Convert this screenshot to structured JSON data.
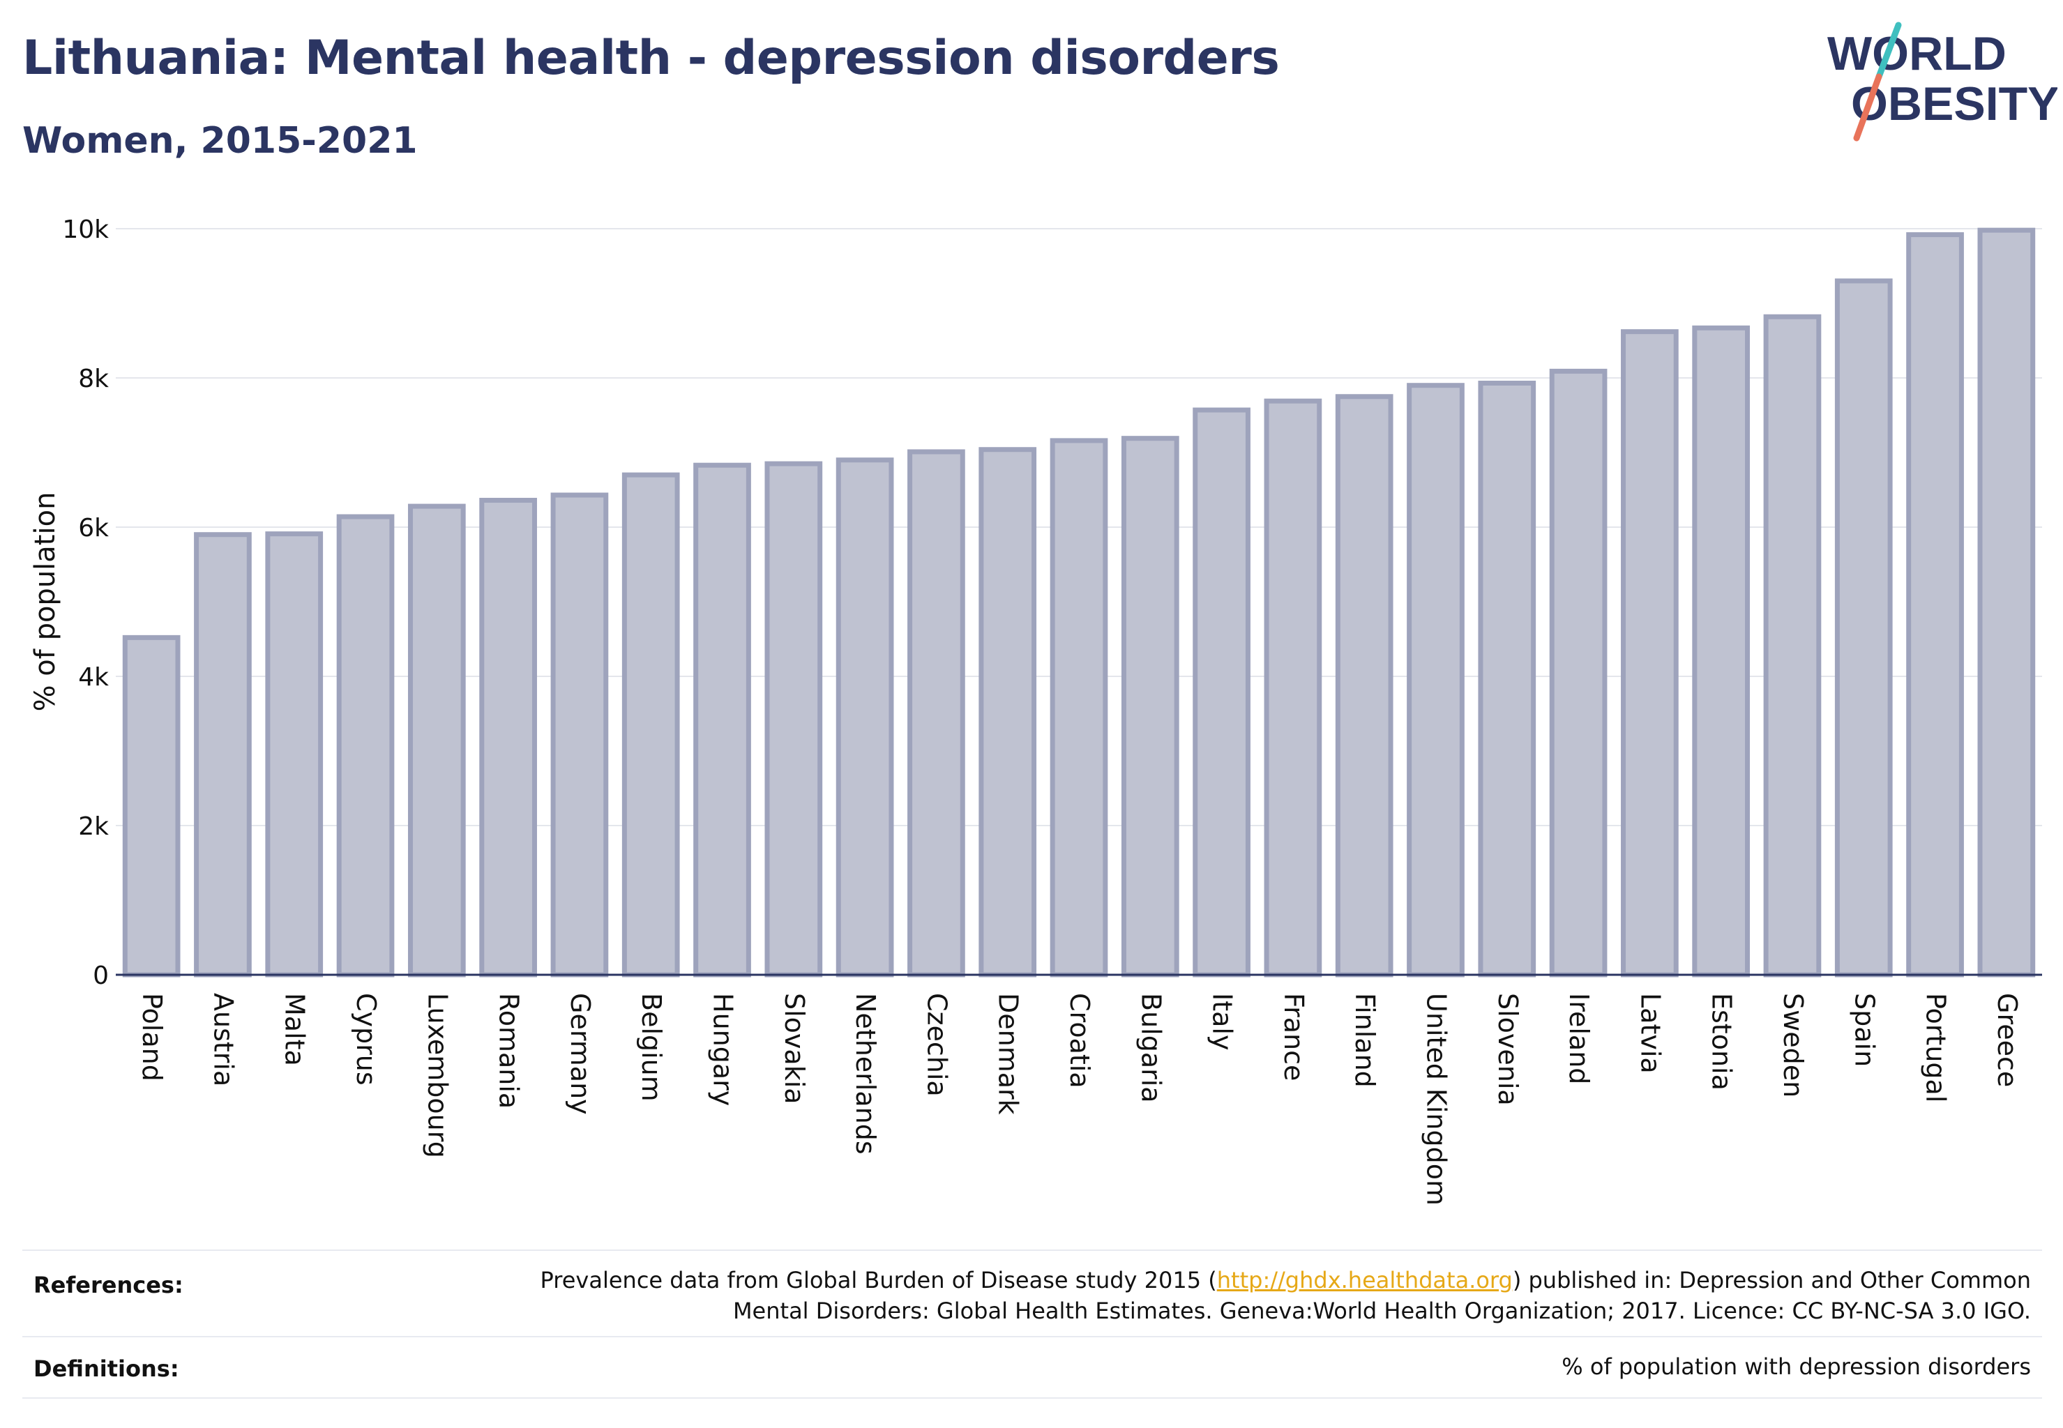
{
  "title": "Lithuania: Mental health - depression disorders",
  "subtitle": "Women, 2015-2021",
  "logo": {
    "line1": "WORLD",
    "line2": "OBESITY"
  },
  "colors": {
    "title": "#2b3562",
    "bar_fill": "#bfc2d1",
    "bar_stroke": "#9ea3bc",
    "grid": "#e4e6ec",
    "axis": "#2b3562",
    "link": "#e6a817",
    "logo_teal": "#3fbfbf",
    "logo_coral": "#e8735a"
  },
  "chart_data": {
    "type": "bar",
    "ylabel": "% of population",
    "xlabel": "",
    "ylim": [
      0,
      10000
    ],
    "yticks": [
      0,
      2000,
      4000,
      6000,
      8000,
      10000
    ],
    "ytick_labels": [
      "0",
      "2k",
      "4k",
      "6k",
      "8k",
      "10k"
    ],
    "grid": true,
    "categories": [
      "Poland",
      "Austria",
      "Malta",
      "Cyprus",
      "Luxembourg",
      "Romania",
      "Germany",
      "Belgium",
      "Hungary",
      "Slovakia",
      "Netherlands",
      "Czechia",
      "Denmark",
      "Croatia",
      "Bulgaria",
      "Italy",
      "France",
      "Finland",
      "United Kingdom",
      "Slovenia",
      "Ireland",
      "Latvia",
      "Estonia",
      "Sweden",
      "Spain",
      "Portugal",
      "Greece"
    ],
    "values": [
      4520,
      5900,
      5910,
      6140,
      6280,
      6360,
      6430,
      6700,
      6830,
      6850,
      6900,
      7010,
      7040,
      7160,
      7190,
      7570,
      7690,
      7750,
      7900,
      7930,
      8090,
      8620,
      8670,
      8820,
      9300,
      9920,
      9980
    ]
  },
  "references": {
    "label": "References:",
    "text_before": "Prevalence data from Global Burden of Disease study 2015 (",
    "link": "http://ghdx.healthdata.org",
    "text_after": ") published in: Depression and Other Common",
    "line2": "Mental Disorders: Global Health Estimates. Geneva:World Health Organization; 2017. Licence: CC BY-NC-SA 3.0 IGO."
  },
  "definitions": {
    "label": "Definitions:",
    "text": "% of population with depression disorders"
  }
}
